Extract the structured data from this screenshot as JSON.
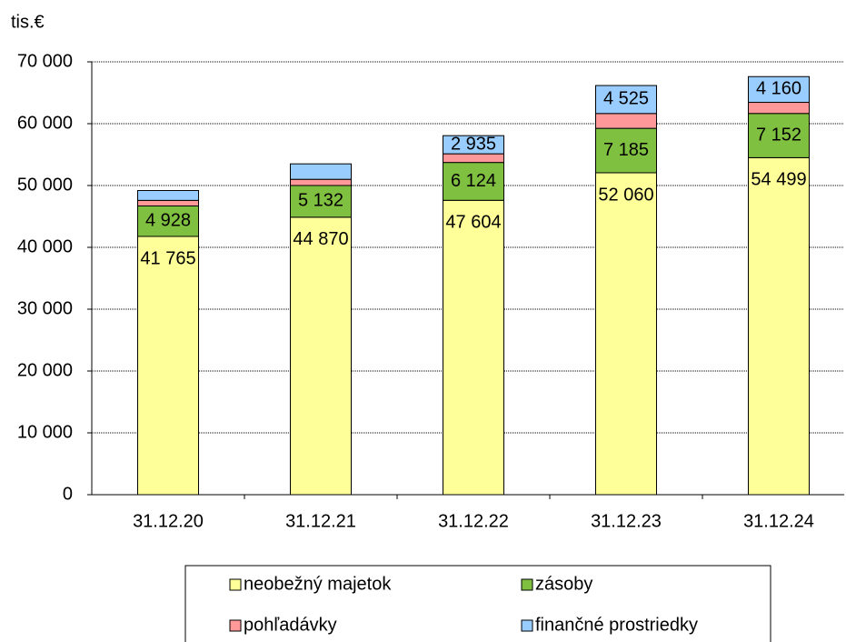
{
  "chart_data": {
    "type": "stacked_bar",
    "y_axis_label": "tis.€",
    "categories": [
      "31.12.20",
      "31.12.21",
      "31.12.22",
      "31.12.23",
      "31.12.24"
    ],
    "series": [
      {
        "name": "neobežný majetok",
        "color": "#ffff99",
        "values": [
          41765,
          44870,
          47604,
          52060,
          54499
        ],
        "value_labels": [
          "41 765",
          "44 870",
          "47 604",
          "52 060",
          "54 499"
        ]
      },
      {
        "name": "zásoby",
        "color": "#80c040",
        "values": [
          4928,
          5132,
          6124,
          7185,
          7152
        ],
        "value_labels": [
          "4 928",
          "5 132",
          "6 124",
          "7 185",
          "7 152"
        ]
      },
      {
        "name": "pohľadávky",
        "color": "#ff9999",
        "values": [
          900,
          1000,
          1400,
          2400,
          1800
        ],
        "value_labels": [
          null,
          null,
          null,
          null,
          null
        ]
      },
      {
        "name": "finančné prostriedky",
        "color": "#99ccff",
        "values": [
          1600,
          2500,
          2935,
          4525,
          4160
        ],
        "value_labels": [
          null,
          null,
          "2 935",
          "4 525",
          "4 160"
        ]
      }
    ],
    "ylim": [
      0,
      70000
    ],
    "yticks": [
      0,
      {
        "value": 10000,
        "label": "10 000"
      },
      {
        "value": 20000,
        "label": "20 000"
      },
      {
        "value": 30000,
        "label": "30 000"
      },
      {
        "value": 40000,
        "label": "40 000"
      },
      {
        "value": 50000,
        "label": "50 000"
      },
      {
        "value": 60000,
        "label": "60 000"
      },
      {
        "value": 70000,
        "label": "70 000"
      }
    ],
    "grid": true,
    "legend": "bottom"
  }
}
